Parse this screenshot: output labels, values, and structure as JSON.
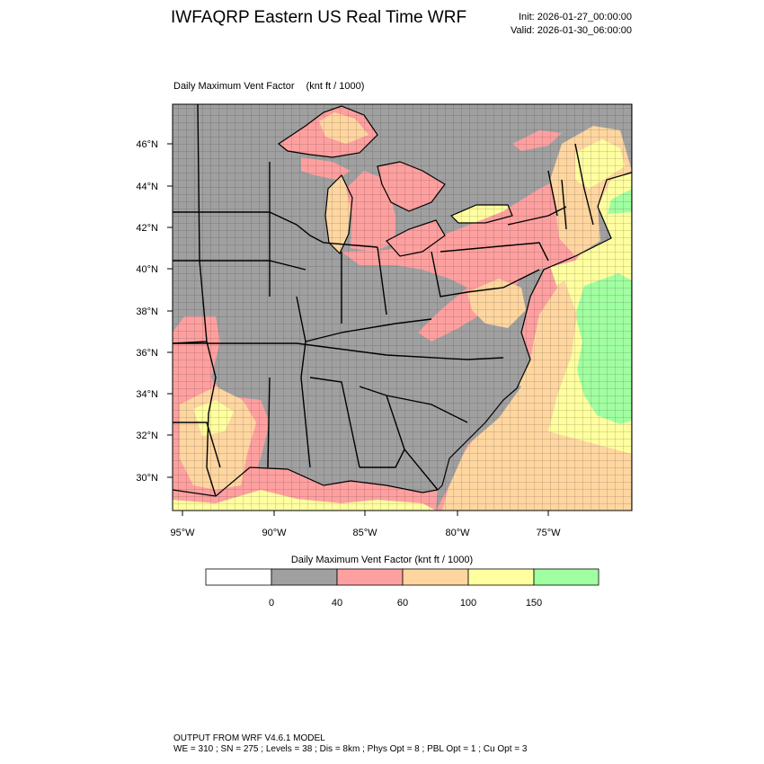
{
  "header": {
    "title": "IWFAQRP Eastern US Real Time WRF",
    "init": "Init: 2026-01-27_00:00:00",
    "valid": "Valid: 2026-01-30_06:00:00"
  },
  "map": {
    "field_name": "Daily Maximum Vent Factor",
    "units": "(knt ft / 1000)",
    "lat_labels": [
      "46°N",
      "44°N",
      "42°N",
      "40°N",
      "38°N",
      "36°N",
      "34°N",
      "32°N",
      "30°N"
    ],
    "lon_labels": [
      "95°W",
      "90°W",
      "85°W",
      "80°W",
      "75°W"
    ]
  },
  "colorbar": {
    "title": "Daily Maximum Vent Factor  (knt ft / 1000)",
    "tick_labels": [
      "0",
      "40",
      "60",
      "100",
      "150"
    ],
    "colors": [
      "#ffffff",
      "#a0a0a0",
      "#ffa0a0",
      "#ffd6a0",
      "#ffffa0",
      "#a0ffa0"
    ],
    "boundaries": [
      0,
      40,
      60,
      100,
      150
    ]
  },
  "footer": {
    "line1": "OUTPUT FROM WRF V4.6.1 MODEL",
    "line2": "WE = 310 ; SN = 275 ; Levels = 38 ; Dis = 8km ; Phys Opt = 8 ; PBL Opt = 1 ; Cu Opt = 3"
  },
  "colors": {
    "gray": "#a0a0a0",
    "pink": "#ffa0a0",
    "peach": "#ffd6a0",
    "yellow": "#ffffa0",
    "green": "#a0ffa0"
  }
}
